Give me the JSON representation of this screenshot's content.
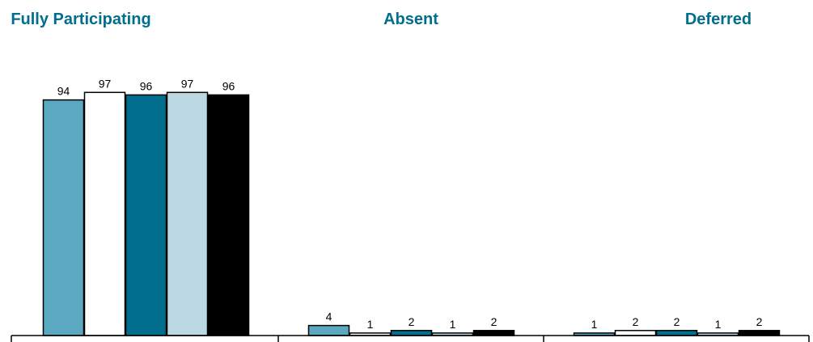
{
  "chart_data": {
    "type": "bar",
    "title": "",
    "xlabel": "",
    "ylabel": "",
    "ylim": [
      0,
      100
    ],
    "grid": false,
    "legend": "none",
    "categories": [
      "Fully Participating",
      "Absent",
      "Deferred"
    ],
    "series": [
      {
        "color": "#5BA8C1",
        "values": [
          94,
          4,
          1
        ]
      },
      {
        "color": "#FFFFFF",
        "values": [
          97,
          1,
          2
        ]
      },
      {
        "color": "#006E8C",
        "values": [
          96,
          2,
          2
        ]
      },
      {
        "color": "#BBD8E3",
        "values": [
          97,
          1,
          1
        ]
      },
      {
        "color": "#000000",
        "values": [
          96,
          2,
          2
        ]
      }
    ]
  },
  "colors": {
    "title": "#006E8C",
    "axis": "#000000",
    "bar_outline": "#000000"
  }
}
